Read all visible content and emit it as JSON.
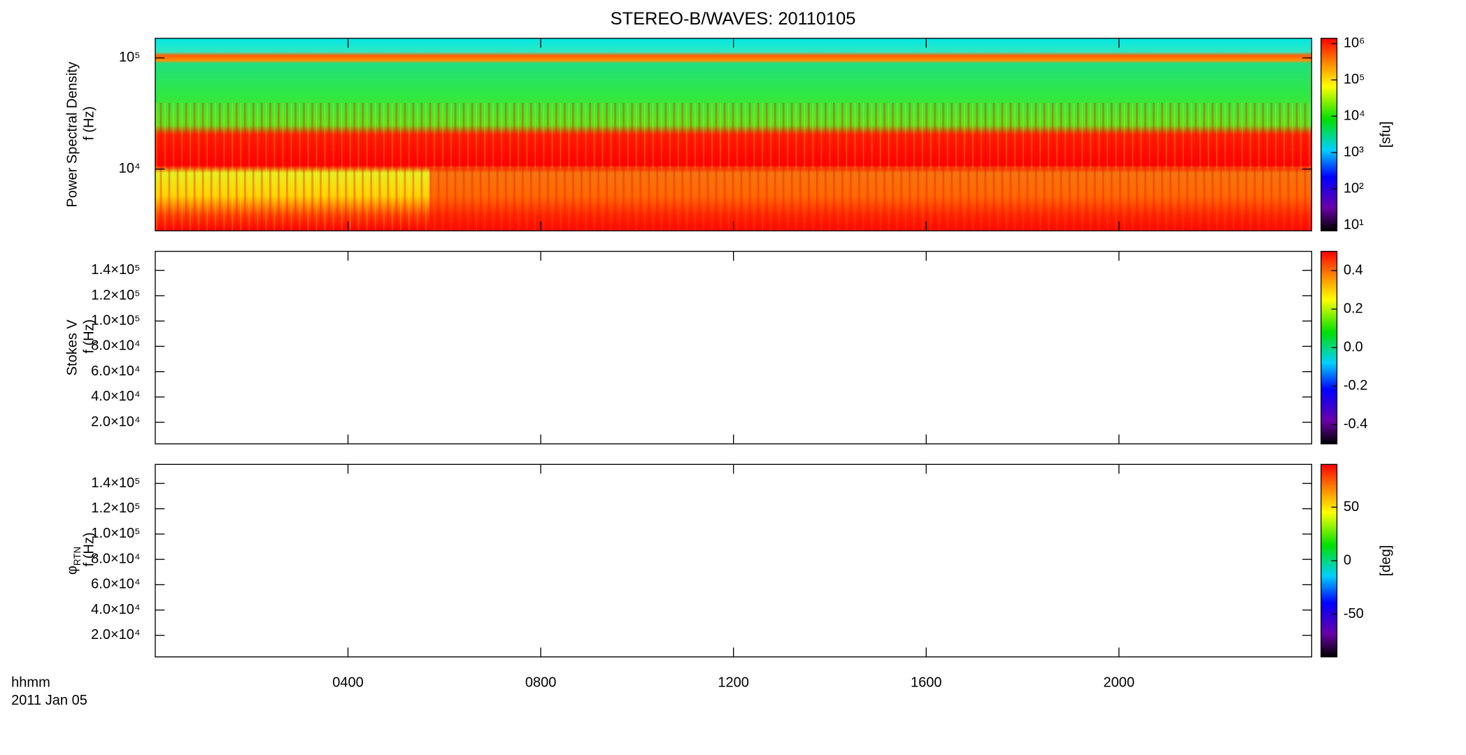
{
  "title": "STEREO-B/WAVES: 20110105",
  "xlabel": "hhmm",
  "date": "2011 Jan 05",
  "chart_data": [
    {
      "type": "heatmap",
      "ylabel": [
        {
          "text": "Power Spectral Density"
        },
        {
          "text": "f (Hz)"
        }
      ],
      "ylog": true,
      "ylim": [
        2790,
        150000
      ],
      "yticks": [
        {
          "value": 10000,
          "label": "10⁴"
        },
        {
          "value": 100000,
          "label": "10⁵"
        }
      ],
      "clog": true,
      "clim": [
        7,
        1400000
      ],
      "cticks": [
        {
          "value": 10,
          "label": "10¹"
        },
        {
          "value": 100,
          "label": "10²"
        },
        {
          "value": 1000,
          "label": "10³"
        },
        {
          "value": 10000,
          "label": "10⁴"
        },
        {
          "value": 100000,
          "label": "10⁵"
        },
        {
          "value": 1000000,
          "label": "10⁶"
        }
      ],
      "clabel": "[sfu]"
    },
    {
      "type": "heatmap",
      "ylabel": [
        {
          "text": "Stokes V"
        },
        {
          "text": "f (Hz)"
        }
      ],
      "ylog": false,
      "ylim": [
        3000,
        155000
      ],
      "yticks": [
        {
          "value": 20000,
          "label": "2.0×10⁴"
        },
        {
          "value": 40000,
          "label": "4.0×10⁴"
        },
        {
          "value": 60000,
          "label": "6.0×10⁴"
        },
        {
          "value": 80000,
          "label": "8.0×10⁴"
        },
        {
          "value": 100000,
          "label": "1.0×10⁵"
        },
        {
          "value": 120000,
          "label": "1.2×10⁵"
        },
        {
          "value": 140000,
          "label": "1.4×10⁵"
        }
      ],
      "clog": false,
      "clim": [
        -0.5,
        0.5
      ],
      "cticks": [
        -0.4,
        -0.2,
        {
          "value": 0,
          "label": "0.0"
        },
        0.2,
        0.4
      ]
    },
    {
      "type": "heatmap",
      "ylabel": [
        {
          "text": "φ",
          "sub": "RTN"
        },
        {
          "text": "f (Hz)"
        }
      ],
      "ylog": false,
      "ylim": [
        3000,
        155000
      ],
      "yticks": [
        {
          "value": 20000,
          "label": "2.0×10⁴"
        },
        {
          "value": 40000,
          "label": "4.0×10⁴"
        },
        {
          "value": 60000,
          "label": "6.0×10⁴"
        },
        {
          "value": 80000,
          "label": "8.0×10⁴"
        },
        {
          "value": 100000,
          "label": "1.0×10⁵"
        },
        {
          "value": 120000,
          "label": "1.2×10⁵"
        },
        {
          "value": 140000,
          "label": "1.4×10⁵"
        }
      ],
      "clog": false,
      "clim": [
        -90,
        90
      ],
      "cticks": [
        -50,
        0,
        50
      ],
      "clabel": "[deg]",
      "xlim": [
        0,
        24
      ],
      "xticks": [
        {
          "value": 4,
          "label": "0400"
        },
        {
          "value": 8,
          "label": "0800"
        },
        {
          "value": 12,
          "label": "1200"
        },
        {
          "value": 16,
          "label": "1600"
        },
        {
          "value": 20,
          "label": "2000"
        }
      ]
    }
  ]
}
